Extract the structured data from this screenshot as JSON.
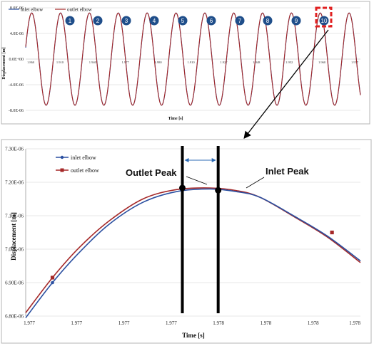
{
  "colors": {
    "inlet": "#2a4fa0",
    "outlet": "#a52828",
    "circle": "#1f4e8a",
    "highlight": "#e02020",
    "grid": "#d0d0d0"
  },
  "chart_data": [
    {
      "type": "line",
      "xlabel": "Time [s]",
      "ylabel": "Displacement [m]",
      "y_tick_labels": [
        "8.0E-06",
        "4.0E-06",
        "0.0E+00",
        "-4.0E-06",
        "-8.0E-06"
      ],
      "zero_line_labels": [
        "1.860",
        "1.910",
        "1.940",
        "1.977",
        "1.980",
        "1.910",
        "1.927",
        "1.948",
        "1.952",
        "1.960",
        "1.977"
      ],
      "ylim": [
        -8e-06,
        8e-06
      ],
      "series": [
        {
          "name": "inlet elbow",
          "amplitude": 7.2e-06,
          "cycles": 11.6
        },
        {
          "name": "outlet elbow",
          "amplitude": 7.2e-06,
          "cycles": 11.6
        }
      ],
      "cycle_markers": [
        "1",
        "2",
        "3",
        "4",
        "5",
        "6",
        "7",
        "8",
        "9",
        "10"
      ],
      "highlighted_cycle": "10"
    },
    {
      "type": "line",
      "xlabel": "Time [s]",
      "ylabel": "Displacement [m]",
      "y_tick_labels": [
        "7.30E-06",
        "7.20E-06",
        "7.10E-06",
        "7.00E-06",
        "6.90E-06",
        "6.80E-06"
      ],
      "ylim": [
        6.8e-06,
        7.3e-06
      ],
      "x_tick_labels": [
        "1.977",
        "1.977",
        "1.977",
        "1.977",
        "1.978",
        "1.978",
        "1.978",
        "1.978"
      ],
      "series": [
        {
          "name": "inlet elbow",
          "x": [
            0.0,
            0.08,
            0.16,
            0.25,
            0.35,
            0.45,
            0.55,
            0.63,
            0.7,
            0.8,
            0.9,
            1.0
          ],
          "values": [
            6.795e-06,
            6.9e-06,
            6.99e-06,
            7.075e-06,
            7.14e-06,
            7.172e-06,
            7.18e-06,
            7.172e-06,
            7.155e-06,
            7.1e-06,
            7.04e-06,
            6.965e-06
          ]
        },
        {
          "name": "outlet elbow",
          "x": [
            0.0,
            0.08,
            0.16,
            0.25,
            0.35,
            0.45,
            0.55,
            0.63,
            0.7,
            0.8,
            0.9,
            1.0
          ],
          "values": [
            6.81e-06,
            6.915e-06,
            7.005e-06,
            7.085e-06,
            7.15e-06,
            7.178e-06,
            7.183e-06,
            7.175e-06,
            7.155e-06,
            7.098e-06,
            7.037e-06,
            6.96e-06
          ]
        }
      ],
      "peaks": [
        {
          "label": "Outlet Peak",
          "x": 0.468,
          "y": 7.183e-06
        },
        {
          "label": "Inlet Peak",
          "x": 0.575,
          "y": 7.176e-06
        }
      ]
    }
  ]
}
